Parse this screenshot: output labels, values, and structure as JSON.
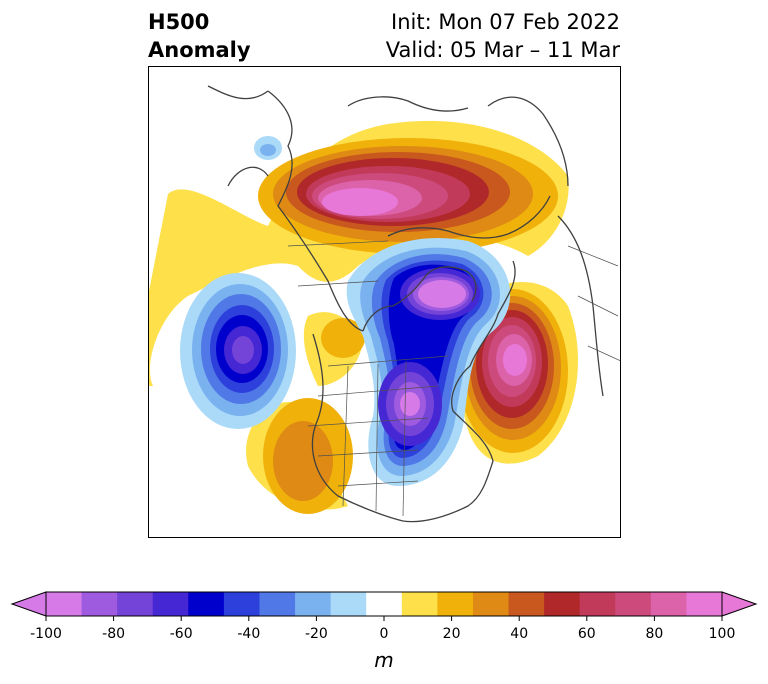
{
  "title": {
    "left_line1": "H500",
    "left_line2": "Anomaly",
    "init": "Init: Mon 07 Feb 2022",
    "valid": "Valid: 05 Mar – 11 Mar"
  },
  "colorbar": {
    "unit": "m",
    "ticks": [
      "-100",
      "-80",
      "-60",
      "-40",
      "-20",
      "0",
      "20",
      "40",
      "60",
      "80",
      "100"
    ],
    "tick_values": [
      -100,
      -80,
      -60,
      -40,
      -20,
      0,
      20,
      40,
      60,
      80,
      100
    ],
    "range": [
      -100,
      100
    ],
    "step": 10,
    "extend": "both",
    "colors": [
      "#d67ae8",
      "#9f5be0",
      "#7443d8",
      "#4527d4",
      "#0000cd",
      "#2d40dc",
      "#5078e6",
      "#7ab2f0",
      "#aadaf8",
      "#ffffff",
      "#fde04a",
      "#f0b20a",
      "#de8a14",
      "#c8581e",
      "#b0282a",
      "#c23a5a",
      "#cc4a7c",
      "#dc62aa",
      "#e878d8"
    ],
    "under_color": "#d67ae8",
    "over_color": "#e878d8"
  },
  "map": {
    "projection": "polar stereographic, North America / North Atlantic",
    "anomalies": [
      {
        "label": "Arctic / Canadian Archipelago ridge",
        "sign": "positive",
        "peak_m": 90
      },
      {
        "label": "Hudson Bay / Baffin trough",
        "sign": "negative",
        "peak_m": -100
      },
      {
        "label": "Eastern North America trough",
        "sign": "negative",
        "peak_m": -90
      },
      {
        "label": "Gulf of Alaska trough",
        "sign": "negative",
        "peak_m": -70
      },
      {
        "label": "North Atlantic ridge",
        "sign": "positive",
        "peak_m": 90
      },
      {
        "label": "Western US ridge",
        "sign": "positive",
        "peak_m": 40
      }
    ]
  }
}
